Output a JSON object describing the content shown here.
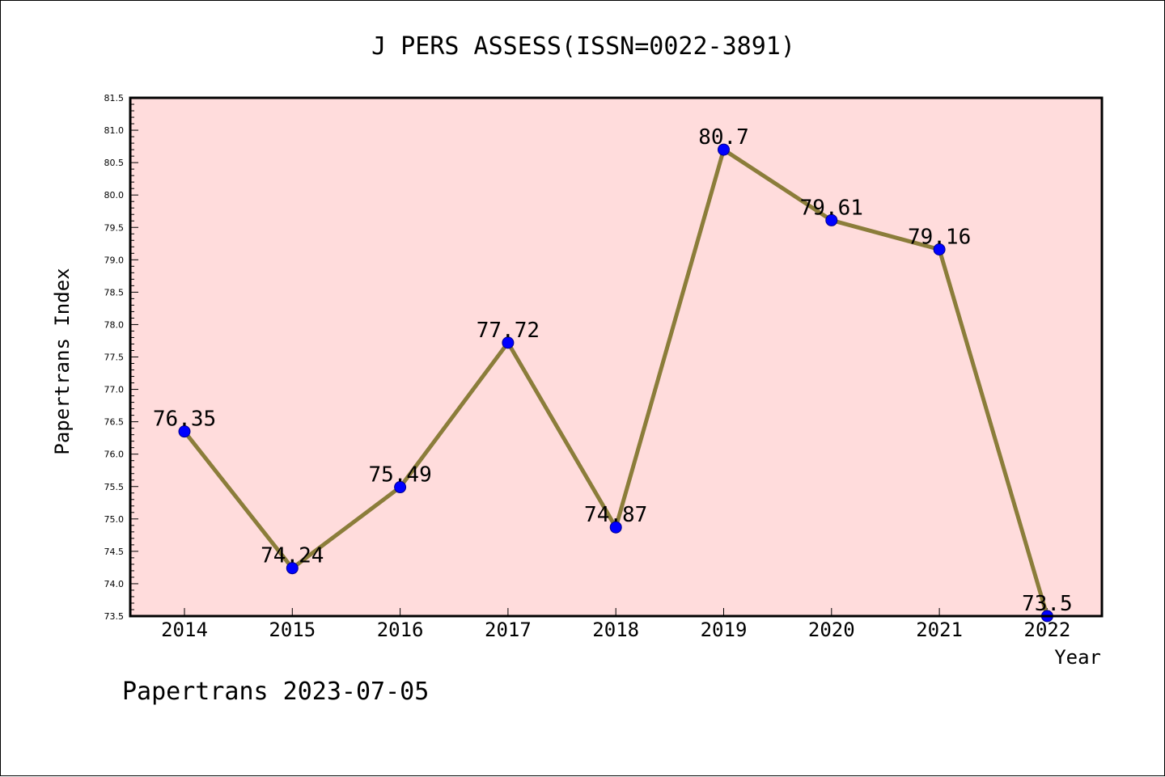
{
  "chart_data": {
    "type": "line",
    "title": "J PERS ASSESS(ISSN=0022-3891)",
    "xlabel": "Year",
    "ylabel": "Papertrans Index",
    "categories": [
      "2014",
      "2015",
      "2016",
      "2017",
      "2018",
      "2019",
      "2020",
      "2021",
      "2022"
    ],
    "series": [
      {
        "values": [
          76.35,
          74.24,
          75.49,
          77.72,
          74.87,
          80.7,
          79.61,
          79.16,
          73.5
        ],
        "labels": [
          "76.35",
          "74.24",
          "75.49",
          "77.72",
          "74.87",
          "80.7",
          "79.61",
          "79.16",
          "73.5"
        ]
      }
    ],
    "ylim": [
      73.5,
      81.5
    ],
    "yticks": [
      "73.5",
      "74.0",
      "74.5",
      "75.0",
      "75.5",
      "76.0",
      "76.5",
      "77.0",
      "77.5",
      "78.0",
      "78.5",
      "79.0",
      "79.5",
      "80.0",
      "80.5",
      "81.0",
      "81.5"
    ],
    "grid": false,
    "footer": "Papertrans 2023-07-05",
    "colors": {
      "plot_background": "#ffdcdc",
      "line": "#8b7d3a",
      "marker_fill": "#0000ff",
      "marker_stroke": "#00008b"
    }
  }
}
